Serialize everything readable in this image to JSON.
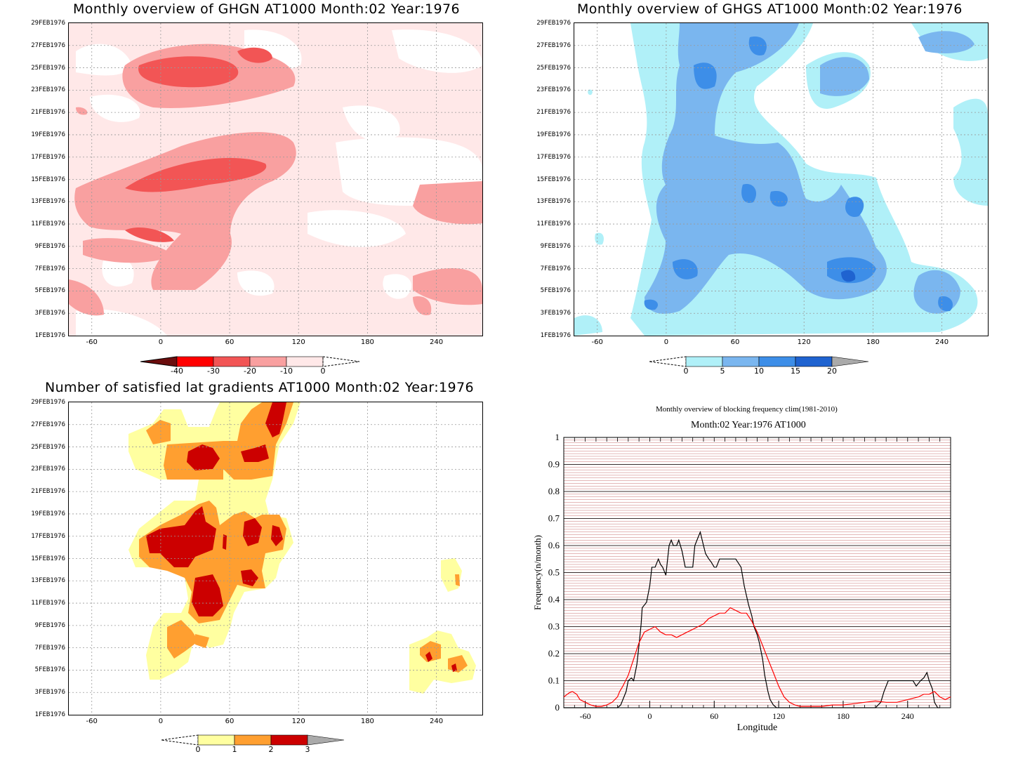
{
  "panels": {
    "ghgn": {
      "title": "Monthly overview of GHGN AT1000 Month:02 Year:1976",
      "colorbar_labels": [
        "-40",
        "-30",
        "-20",
        "-10",
        "0"
      ],
      "colorbar_colors": [
        "#6b0d0d",
        "#ff0000",
        "#f25555",
        "#f9a0a0",
        "#ffe8e8"
      ]
    },
    "ghgs": {
      "title": "Monthly overview of GHGS AT1000 Month:02 Year:1976",
      "colorbar_labels": [
        "0",
        "5",
        "10",
        "15",
        "20"
      ],
      "colorbar_colors": [
        "#b0f0f8",
        "#7ab6ef",
        "#3d8ee8",
        "#1f63d0",
        "#aaaaaa"
      ]
    },
    "gradients": {
      "title": "Number of satisfied lat gradients AT1000 Month:02 Year:1976",
      "colorbar_labels": [
        "0",
        "1",
        "2",
        "3"
      ],
      "colorbar_colors": [
        "#ffffa0",
        "#ff9f30",
        "#cc0000",
        "#aaaaaa"
      ]
    }
  },
  "y_date_labels": [
    "29FEB1976",
    "27FEB1976",
    "25FEB1976",
    "23FEB1976",
    "21FEB1976",
    "19FEB1976",
    "17FEB1976",
    "15FEB1976",
    "13FEB1976",
    "11FEB1976",
    "9FEB1976",
    "7FEB1976",
    "5FEB1976",
    "3FEB1976",
    "1FEB1976"
  ],
  "x_lon_labels": [
    "-60",
    "0",
    "60",
    "120",
    "180",
    "240"
  ],
  "chart_data": [
    {
      "type": "heatmap",
      "title": "Monthly overview of GHGN AT1000 Month:02 Year:1976",
      "x_ticks": [
        -60,
        0,
        60,
        120,
        180,
        240
      ],
      "y_ticks": [
        "1FEB1976",
        "3FEB1976",
        "5FEB1976",
        "7FEB1976",
        "9FEB1976",
        "11FEB1976",
        "13FEB1976",
        "15FEB1976",
        "17FEB1976",
        "19FEB1976",
        "21FEB1976",
        "23FEB1976",
        "25FEB1976",
        "27FEB1976",
        "29FEB1976"
      ],
      "xlim": [
        -80,
        280
      ],
      "levels": [
        -40,
        -30,
        -20,
        -10,
        0
      ],
      "grid": true
    },
    {
      "type": "heatmap",
      "title": "Monthly overview of GHGS AT1000 Month:02 Year:1976",
      "x_ticks": [
        -60,
        0,
        60,
        120,
        180,
        240
      ],
      "y_ticks": [
        "1FEB1976",
        "3FEB1976",
        "5FEB1976",
        "7FEB1976",
        "9FEB1976",
        "11FEB1976",
        "13FEB1976",
        "15FEB1976",
        "17FEB1976",
        "19FEB1976",
        "21FEB1976",
        "23FEB1976",
        "25FEB1976",
        "27FEB1976",
        "29FEB1976"
      ],
      "xlim": [
        -80,
        280
      ],
      "levels": [
        0,
        5,
        10,
        15,
        20
      ],
      "grid": true
    },
    {
      "type": "heatmap",
      "title": "Number of satisfied lat gradients AT1000 Month:02 Year:1976",
      "x_ticks": [
        -60,
        0,
        60,
        120,
        180,
        240
      ],
      "y_ticks": [
        "1FEB1976",
        "3FEB1976",
        "5FEB1976",
        "7FEB1976",
        "9FEB1976",
        "11FEB1976",
        "13FEB1976",
        "15FEB1976",
        "17FEB1976",
        "19FEB1976",
        "21FEB1976",
        "23FEB1976",
        "25FEB1976",
        "27FEB1976",
        "29FEB1976"
      ],
      "xlim": [
        -80,
        280
      ],
      "levels": [
        0,
        1,
        2,
        3
      ],
      "grid": true
    },
    {
      "type": "line",
      "title": "Monthly overview of blocking frequency clim(1981-2010)",
      "subtitle": "Month:02 Year:1976  AT1000",
      "xlabel": "Longitude",
      "ylabel": "Frequency(n/month)",
      "xlim": [
        -80,
        280
      ],
      "ylim": [
        0,
        1
      ],
      "x_ticks": [
        -60,
        0,
        60,
        120,
        180,
        240
      ],
      "y_ticks": [
        0,
        0.1,
        0.2,
        0.3,
        0.4,
        0.5,
        0.6,
        0.7,
        0.8,
        0.9,
        1
      ],
      "grid": true,
      "series": [
        {
          "color": "#000000",
          "x": [
            -80,
            -40,
            -30,
            -27,
            -25,
            -22,
            -20,
            -17,
            -15,
            -12,
            -10,
            -8,
            -7,
            -5,
            -3,
            0,
            2,
            5,
            8,
            10,
            12,
            15,
            18,
            20,
            22,
            25,
            27,
            30,
            33,
            35,
            38,
            40,
            42,
            45,
            47,
            50,
            52,
            55,
            57,
            60,
            62,
            65,
            68,
            70,
            72,
            75,
            78,
            80,
            85,
            88,
            92,
            95,
            97,
            100,
            102,
            105,
            107,
            110,
            112,
            115,
            118,
            120,
            150,
            180,
            210,
            215,
            218,
            222,
            230,
            235,
            240,
            245,
            248,
            252,
            255,
            258,
            260,
            263,
            265,
            268,
            270
          ],
          "y": [
            0,
            0,
            0,
            0.01,
            0.03,
            0.06,
            0.1,
            0.11,
            0.1,
            0.16,
            0.23,
            0.31,
            0.37,
            0.38,
            0.39,
            0.45,
            0.52,
            0.52,
            0.55,
            0.53,
            0.52,
            0.49,
            0.6,
            0.62,
            0.6,
            0.6,
            0.62,
            0.58,
            0.52,
            0.52,
            0.52,
            0.52,
            0.6,
            0.63,
            0.65,
            0.6,
            0.57,
            0.55,
            0.54,
            0.52,
            0.52,
            0.55,
            0.55,
            0.55,
            0.55,
            0.55,
            0.55,
            0.55,
            0.52,
            0.45,
            0.38,
            0.34,
            0.3,
            0.27,
            0.24,
            0.18,
            0.12,
            0.06,
            0.03,
            0.01,
            0,
            0,
            0,
            0,
            0,
            0.02,
            0.06,
            0.1,
            0.1,
            0.1,
            0.1,
            0.1,
            0.08,
            0.1,
            0.11,
            0.13,
            0.1,
            0.07,
            0.02,
            0,
            0
          ]
        },
        {
          "color": "#ff0000",
          "x": [
            -80,
            -75,
            -72,
            -68,
            -65,
            -60,
            -55,
            -50,
            -45,
            -40,
            -35,
            -30,
            -28,
            -25,
            -20,
            -15,
            -10,
            -5,
            0,
            5,
            10,
            15,
            20,
            25,
            30,
            35,
            40,
            45,
            50,
            55,
            60,
            65,
            70,
            75,
            80,
            85,
            90,
            95,
            100,
            105,
            110,
            115,
            120,
            125,
            130,
            135,
            140,
            150,
            160,
            170,
            180,
            190,
            200,
            210,
            220,
            230,
            240,
            250,
            255,
            260,
            265,
            270,
            275,
            280
          ],
          "y": [
            0.04,
            0.055,
            0.06,
            0.05,
            0.03,
            0.02,
            0.01,
            0.005,
            0.005,
            0.01,
            0.02,
            0.04,
            0.06,
            0.08,
            0.12,
            0.18,
            0.24,
            0.28,
            0.29,
            0.3,
            0.28,
            0.27,
            0.27,
            0.26,
            0.27,
            0.28,
            0.29,
            0.3,
            0.31,
            0.33,
            0.34,
            0.35,
            0.35,
            0.37,
            0.36,
            0.35,
            0.35,
            0.32,
            0.28,
            0.23,
            0.18,
            0.13,
            0.08,
            0.04,
            0.02,
            0.01,
            0.005,
            0.005,
            0.005,
            0.01,
            0.01,
            0.015,
            0.02,
            0.025,
            0.02,
            0.02,
            0.03,
            0.04,
            0.05,
            0.05,
            0.06,
            0.04,
            0.03,
            0.04
          ]
        }
      ]
    }
  ]
}
